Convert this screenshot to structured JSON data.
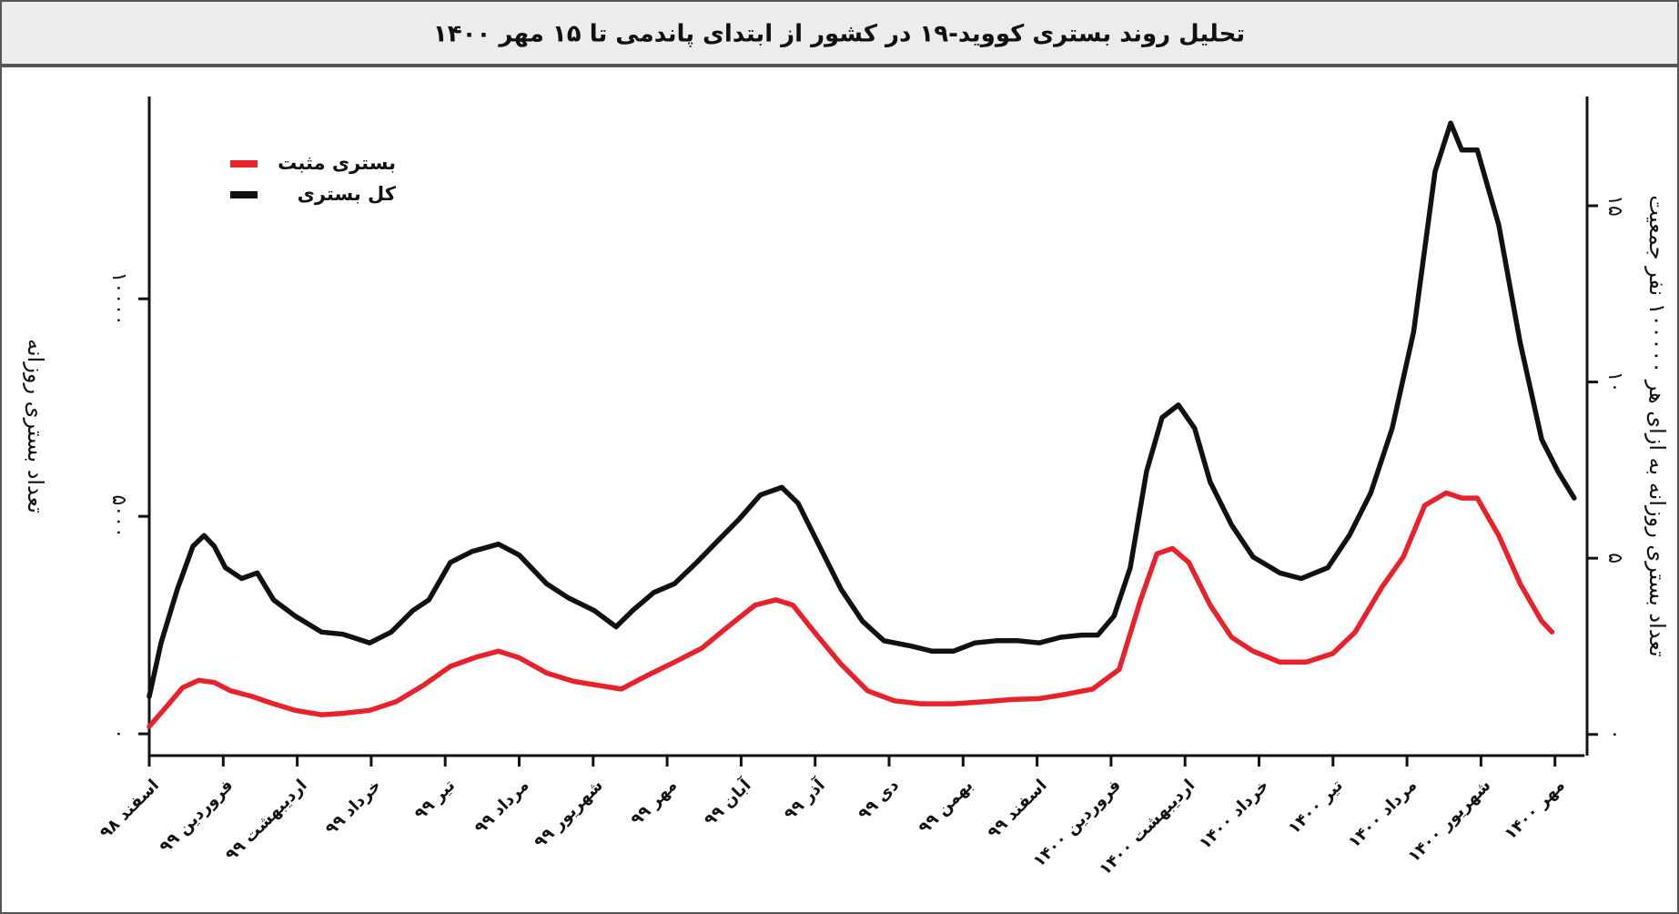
{
  "chart_data": {
    "type": "line",
    "title": "تحلیل روند بستری کووید-۱۹ در کشور از ابتدای پاندمی تا ۱۵ مهر ۱۴۰۰",
    "y_label": "تعداد بستری روزانه",
    "y2_label": "تعداد بستری روزانه به ازای هر ۱۰۰۰۰۰ نفر جمعیت",
    "xlim": [
      0,
      19.4
    ],
    "xticks": [
      {
        "value": 0,
        "label": "اسفند ۹۸"
      },
      {
        "value": 1,
        "label": "فروردین ۹۹"
      },
      {
        "value": 2,
        "label": "اردیبهشت ۹۹"
      },
      {
        "value": 3,
        "label": "خرداد ۹۹"
      },
      {
        "value": 4,
        "label": "تیر ۹۹"
      },
      {
        "value": 5,
        "label": "مرداد ۹۹"
      },
      {
        "value": 6,
        "label": "شهریور ۹۹"
      },
      {
        "value": 7,
        "label": "مهر ۹۹"
      },
      {
        "value": 8,
        "label": "آبان ۹۹"
      },
      {
        "value": 9,
        "label": "آذر ۹۹"
      },
      {
        "value": 10,
        "label": "دی ۹۹"
      },
      {
        "value": 11,
        "label": "بهمن ۹۹"
      },
      {
        "value": 12,
        "label": "اسفند ۹۹"
      },
      {
        "value": 13,
        "label": "فروردین ۱۴۰۰"
      },
      {
        "value": 14,
        "label": "اردیبهشت ۱۴۰۰"
      },
      {
        "value": 15,
        "label": "خرداد ۱۴۰۰"
      },
      {
        "value": 16,
        "label": "تیر ۱۴۰۰"
      },
      {
        "value": 17,
        "label": "مرداد ۱۴۰۰"
      },
      {
        "value": 18,
        "label": "شهریور ۱۴۰۰"
      },
      {
        "value": 19,
        "label": "مهر ۱۴۰۰"
      }
    ],
    "ylim": [
      -500,
      14650
    ],
    "yticks": [
      {
        "value": 0,
        "label": "۰"
      },
      {
        "value": 5000,
        "label": "۵۰۰۰"
      },
      {
        "value": 10000,
        "label": "۱۰۰۰۰"
      }
    ],
    "y2lim": [
      -0.6,
      18.1
    ],
    "y2ticks": [
      {
        "value": 0,
        "label": "۰"
      },
      {
        "value": 5,
        "label": "۵"
      },
      {
        "value": 10,
        "label": "۱۰"
      },
      {
        "value": 15,
        "label": "۱۵"
      }
    ],
    "legend": "upper left",
    "series": [
      {
        "name": "بستری مثبت",
        "color": "#e8212b",
        "x": [
          0,
          0.23,
          0.45,
          0.67,
          0.88,
          1.1,
          1.39,
          1.68,
          1.97,
          2.33,
          2.62,
          2.98,
          3.34,
          3.7,
          4.07,
          4.43,
          4.72,
          5.0,
          5.37,
          5.73,
          6.09,
          6.38,
          6.74,
          7.1,
          7.47,
          7.82,
          8.19,
          8.47,
          8.7,
          8.99,
          9.35,
          9.71,
          10.07,
          10.43,
          10.87,
          11.3,
          11.66,
          12.03,
          12.39,
          12.75,
          13.11,
          13.4,
          13.62,
          13.83,
          14.05,
          14.34,
          14.63,
          14.92,
          15.28,
          15.64,
          16.0,
          16.3,
          16.66,
          16.95,
          17.24,
          17.53,
          17.74,
          17.95,
          18.24,
          18.53,
          18.82,
          18.96
        ],
        "values": [
          170,
          620,
          1060,
          1230,
          1180,
          990,
          860,
          690,
          540,
          440,
          470,
          540,
          740,
          1110,
          1550,
          1770,
          1900,
          1750,
          1400,
          1210,
          1110,
          1030,
          1350,
          1650,
          1970,
          2460,
          2960,
          3080,
          2960,
          2340,
          1600,
          990,
          760,
          690,
          690,
          740,
          790,
          810,
          910,
          1030,
          1480,
          3080,
          4140,
          4260,
          3940,
          2960,
          2220,
          1900,
          1650,
          1650,
          1850,
          2340,
          3370,
          4065,
          5250,
          5540,
          5420,
          5420,
          4560,
          3450,
          2590,
          2340
        ]
      },
      {
        "name": "کل بستری",
        "color": "#111111",
        "x": [
          0,
          0.16,
          0.38,
          0.59,
          0.74,
          0.88,
          1.03,
          1.25,
          1.46,
          1.68,
          1.97,
          2.33,
          2.62,
          2.98,
          3.27,
          3.56,
          3.78,
          4.07,
          4.36,
          4.72,
          5.0,
          5.37,
          5.66,
          6.02,
          6.31,
          6.53,
          6.82,
          7.1,
          7.4,
          7.68,
          7.97,
          8.26,
          8.55,
          8.77,
          9.06,
          9.35,
          9.64,
          9.93,
          10.29,
          10.58,
          10.87,
          11.16,
          11.45,
          11.74,
          12.03,
          12.32,
          12.6,
          12.82,
          13.04,
          13.26,
          13.48,
          13.69,
          13.91,
          14.13,
          14.34,
          14.63,
          14.92,
          15.28,
          15.57,
          15.93,
          16.22,
          16.51,
          16.8,
          17.09,
          17.38,
          17.59,
          17.74,
          17.95,
          18.24,
          18.53,
          18.82,
          19.04,
          19.26
        ],
        "values": [
          860,
          2090,
          3325,
          4310,
          4560,
          4310,
          3820,
          3570,
          3700,
          3080,
          2710,
          2340,
          2290,
          2090,
          2340,
          2830,
          3080,
          3940,
          4190,
          4360,
          4110,
          3450,
          3130,
          2830,
          2460,
          2830,
          3250,
          3450,
          3940,
          4430,
          4930,
          5490,
          5665,
          5300,
          4310,
          3325,
          2590,
          2140,
          2020,
          1900,
          1900,
          2090,
          2140,
          2140,
          2090,
          2220,
          2270,
          2270,
          2710,
          3820,
          6030,
          7270,
          7560,
          7020,
          5790,
          4800,
          4065,
          3700,
          3570,
          3820,
          4560,
          5540,
          7020,
          9240,
          12930,
          14040,
          13420,
          13420,
          11700,
          8990,
          6770,
          6030,
          5420
        ]
      }
    ]
  }
}
